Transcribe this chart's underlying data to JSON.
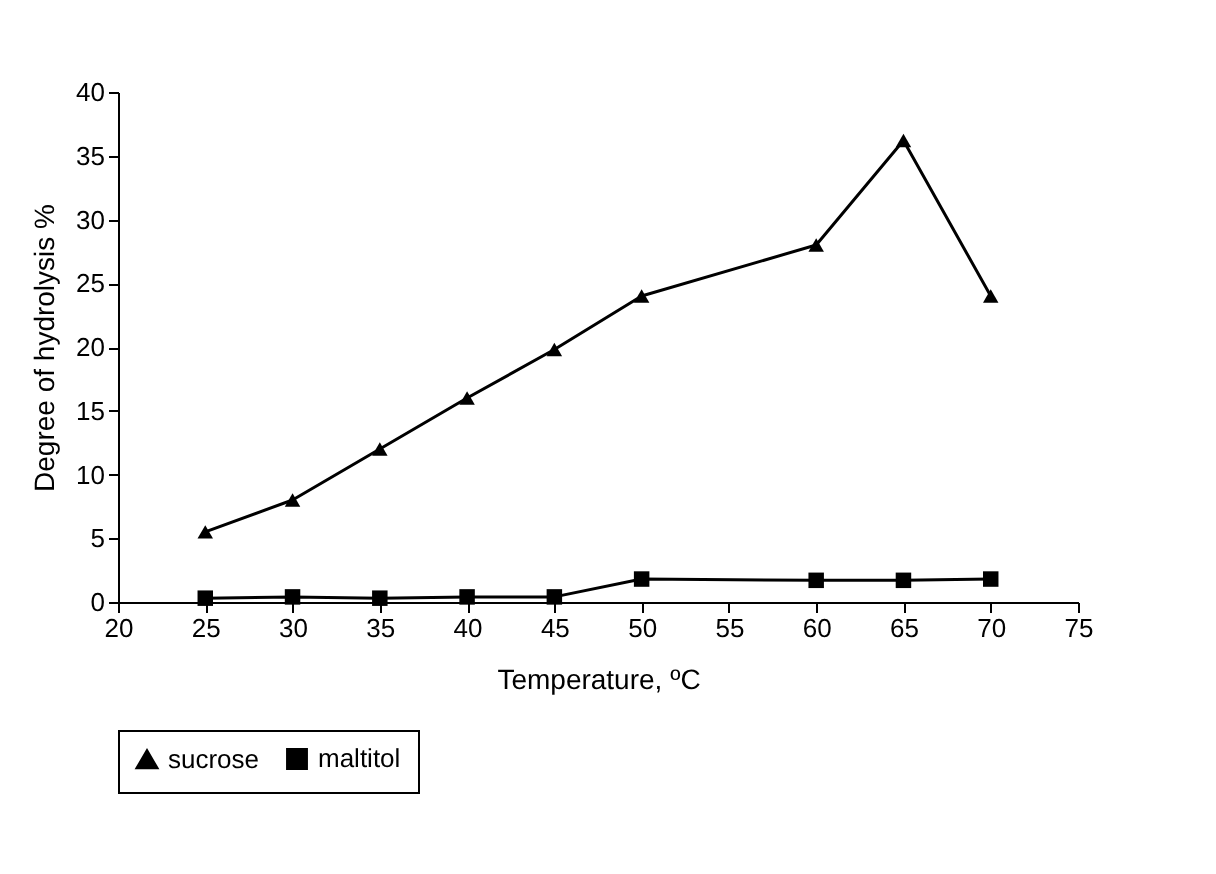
{
  "chart_data": {
    "type": "line",
    "xlabel": "Temperature, ºC",
    "ylabel": "Degree of hydrolysis %",
    "x": [
      25,
      30,
      35,
      40,
      45,
      50,
      60,
      65,
      70
    ],
    "series": [
      {
        "name": "sucrose",
        "color": "#000000",
        "marker": "triangle",
        "values": [
          5.5,
          8,
          12,
          16,
          19.8,
          24,
          28,
          36.2,
          24
        ]
      },
      {
        "name": "maltitol",
        "color": "#000000",
        "marker": "square",
        "values": [
          0.3,
          0.4,
          0.3,
          0.4,
          0.4,
          1.8,
          1.7,
          1.7,
          1.8
        ]
      }
    ],
    "xlim": [
      20,
      75
    ],
    "xticks": [
      20,
      25,
      30,
      35,
      40,
      45,
      50,
      55,
      60,
      65,
      70,
      75
    ],
    "ylim": [
      0,
      40
    ],
    "yticks": [
      0,
      5,
      10,
      15,
      20,
      25,
      30,
      35,
      40
    ],
    "grid": false,
    "legend": "bottom",
    "line_style": "solid"
  }
}
